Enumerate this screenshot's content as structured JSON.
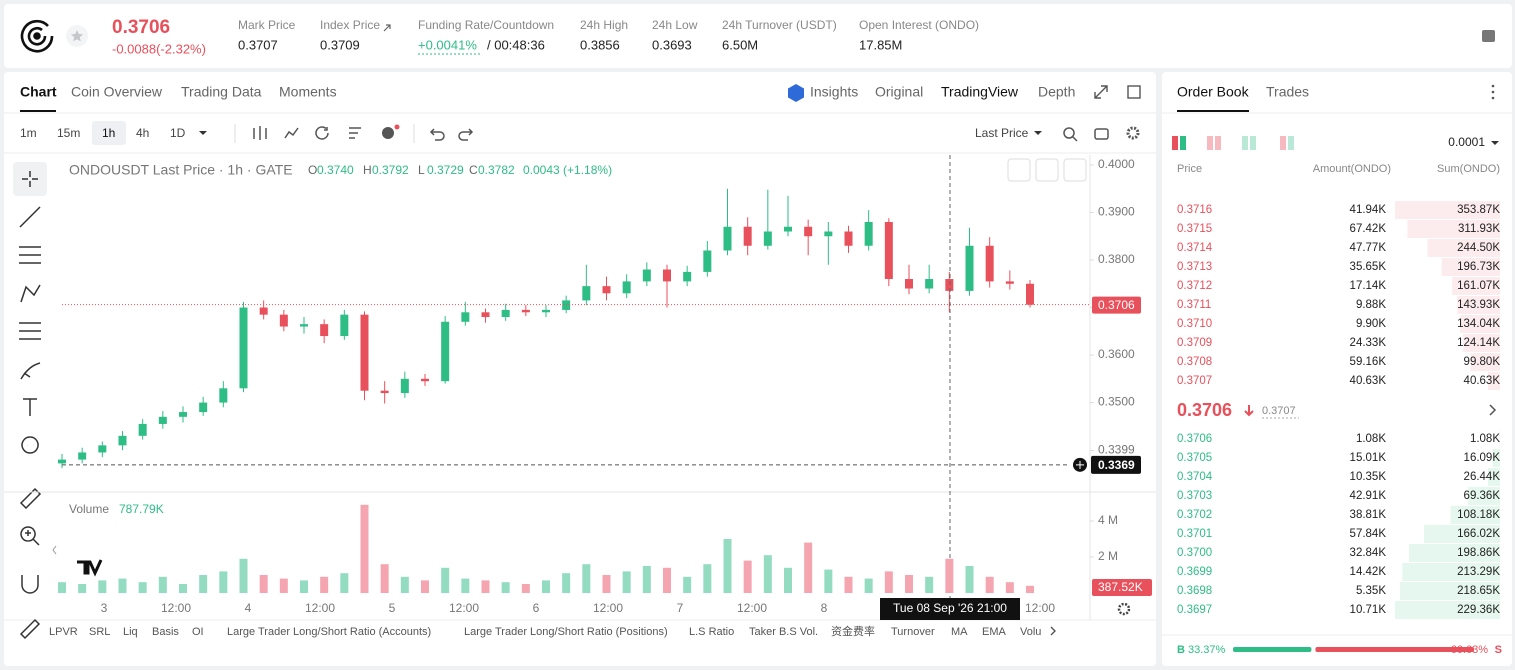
{
  "header": {
    "price": "0.3706",
    "change": "-0.0088(-2.32%)",
    "stats": [
      {
        "label": "Mark Price",
        "value": "0.3707"
      },
      {
        "label": "Index Price",
        "value": "0.3709"
      },
      {
        "label": "Funding Rate/Countdown",
        "value": "+0.0041%",
        "extra": "/ 00:48:36"
      },
      {
        "label": "24h High",
        "value": "0.3856"
      },
      {
        "label": "24h Low",
        "value": "0.3693"
      },
      {
        "label": "24h Turnover (USDT)",
        "value": "6.50M"
      },
      {
        "label": "Open Interest (ONDO)",
        "value": "17.85M"
      }
    ]
  },
  "tabs": [
    "Chart",
    "Coin Overview",
    "Trading Data",
    "Moments"
  ],
  "views": [
    "Insights",
    "Original",
    "TradingView",
    "Depth"
  ],
  "intervals": [
    "1m",
    "15m",
    "1h",
    "4h",
    "1D"
  ],
  "price_type": "Last Price",
  "chart_data": {
    "type": "candlestick",
    "title": "ONDOUSDT Last Price · 1h · GATE",
    "ohlc": [
      {
        "label": "O",
        "value": "0.3740"
      },
      {
        "label": "H",
        "value": "0.3792"
      },
      {
        "label": "L",
        "value": "0.3729"
      },
      {
        "label": "C",
        "value": "0.3782"
      }
    ],
    "change": "0.0043 (+1.18%)",
    "candles": [
      [
        0.3372,
        0.3392,
        0.3362,
        0.338
      ],
      [
        0.338,
        0.3405,
        0.3372,
        0.3395
      ],
      [
        0.3395,
        0.3418,
        0.3385,
        0.341
      ],
      [
        0.341,
        0.344,
        0.34,
        0.343
      ],
      [
        0.343,
        0.3465,
        0.3422,
        0.3455
      ],
      [
        0.3455,
        0.3482,
        0.3445,
        0.347
      ],
      [
        0.347,
        0.3492,
        0.3458,
        0.348
      ],
      [
        0.348,
        0.3512,
        0.3472,
        0.35
      ],
      [
        0.35,
        0.3545,
        0.349,
        0.353
      ],
      [
        0.353,
        0.3712,
        0.3522,
        0.37
      ],
      [
        0.37,
        0.3715,
        0.3675,
        0.3685
      ],
      [
        0.3685,
        0.3695,
        0.365,
        0.366
      ],
      [
        0.366,
        0.368,
        0.3645,
        0.3665
      ],
      [
        0.3665,
        0.3675,
        0.3625,
        0.364
      ],
      [
        0.364,
        0.3695,
        0.3632,
        0.3685
      ],
      [
        0.3685,
        0.3692,
        0.3505,
        0.3525
      ],
      [
        0.3525,
        0.3545,
        0.3498,
        0.352
      ],
      [
        0.352,
        0.3565,
        0.351,
        0.355
      ],
      [
        0.355,
        0.356,
        0.3535,
        0.3545
      ],
      [
        0.3545,
        0.3682,
        0.354,
        0.367
      ],
      [
        0.367,
        0.3712,
        0.3662,
        0.369
      ],
      [
        0.369,
        0.3698,
        0.3668,
        0.368
      ],
      [
        0.368,
        0.3708,
        0.3672,
        0.3695
      ],
      [
        0.3695,
        0.3705,
        0.3682,
        0.369
      ],
      [
        0.369,
        0.3705,
        0.368,
        0.3695
      ],
      [
        0.3695,
        0.3725,
        0.3688,
        0.3715
      ],
      [
        0.3715,
        0.379,
        0.3705,
        0.3745
      ],
      [
        0.3745,
        0.3765,
        0.3715,
        0.373
      ],
      [
        0.373,
        0.377,
        0.372,
        0.3755
      ],
      [
        0.3755,
        0.3795,
        0.3745,
        0.378
      ],
      [
        0.378,
        0.379,
        0.37,
        0.3755
      ],
      [
        0.3755,
        0.3788,
        0.3745,
        0.3775
      ],
      [
        0.3775,
        0.384,
        0.3765,
        0.382
      ],
      [
        0.382,
        0.395,
        0.381,
        0.387
      ],
      [
        0.387,
        0.389,
        0.381,
        0.383
      ],
      [
        0.383,
        0.3948,
        0.3822,
        0.386
      ],
      [
        0.386,
        0.3935,
        0.385,
        0.387
      ],
      [
        0.387,
        0.3885,
        0.381,
        0.385
      ],
      [
        0.385,
        0.388,
        0.379,
        0.386
      ],
      [
        0.386,
        0.3872,
        0.3815,
        0.383
      ],
      [
        0.383,
        0.3905,
        0.382,
        0.388
      ],
      [
        0.388,
        0.3888,
        0.3745,
        0.376
      ],
      [
        0.376,
        0.379,
        0.3728,
        0.374
      ],
      [
        0.374,
        0.379,
        0.373,
        0.376
      ],
      [
        0.376,
        0.3775,
        0.369,
        0.3735
      ],
      [
        0.3735,
        0.3868,
        0.3725,
        0.383
      ],
      [
        0.383,
        0.3848,
        0.3742,
        0.3755
      ],
      [
        0.3755,
        0.3778,
        0.3738,
        0.375
      ],
      [
        0.375,
        0.3758,
        0.37,
        0.3706
      ]
    ],
    "ylim": [
      0.3316,
      0.4021
    ],
    "yticks": [
      {
        "value": 0.4,
        "label": "0.4000"
      },
      {
        "value": 0.39,
        "label": "0.3900"
      },
      {
        "value": 0.38,
        "label": "0.3800"
      },
      {
        "value": 0.37,
        "label": "0.3700"
      },
      {
        "value": 0.36,
        "label": "0.3600"
      },
      {
        "value": 0.35,
        "label": "0.3500"
      },
      0.3399
    ],
    "last_price": 0.3706,
    "crosshair_price": 0.3369,
    "crosshair_time": "Tue 08 Sep '26  21:00",
    "xticks": [
      "3",
      "12:00",
      "4",
      "12:00",
      "5",
      "12:00",
      "6",
      "12:00",
      "7",
      "12:00",
      "8",
      "12:00"
    ],
    "volume": {
      "label": "Volume",
      "value_label": "787.79K",
      "last": "387.52K",
      "values": [
        0.6,
        0.5,
        0.7,
        0.8,
        0.6,
        0.9,
        0.5,
        1.0,
        1.2,
        1.9,
        1.0,
        0.8,
        0.7,
        0.9,
        1.1,
        4.9,
        1.6,
        0.9,
        0.7,
        1.4,
        0.8,
        0.7,
        0.6,
        0.5,
        0.7,
        1.1,
        1.6,
        1.0,
        1.2,
        1.5,
        1.4,
        0.9,
        1.6,
        3.0,
        1.8,
        2.1,
        1.4,
        2.8,
        1.3,
        0.9,
        0.8,
        1.2,
        1.0,
        0.9,
        1.9,
        1.5,
        0.9,
        0.6,
        0.4
      ],
      "ylim": [
        0,
        5.11
      ],
      "yticks": [
        {
          "value": 4,
          "label": "4 M"
        },
        {
          "value": 2,
          "label": "2 M"
        }
      ]
    }
  },
  "indicators": [
    "LPVR",
    "SRL",
    "Liq",
    "Basis",
    "OI",
    "Large Trader Long/Short Ratio (Accounts)",
    "Large Trader Long/Short Ratio (Positions)",
    "L.S Ratio",
    "Taker B.S Vol.",
    "资金费率",
    "Turnover",
    "MA",
    "EMA",
    "Volu"
  ],
  "order_book": {
    "tabs": [
      "Order Book",
      "Trades"
    ],
    "precision": "0.0001",
    "columns": [
      "Price",
      "Amount(ONDO)",
      "Sum(ONDO)"
    ],
    "asks": [
      [
        "0.3716",
        "41.94K",
        "353.87K"
      ],
      [
        "0.3715",
        "67.42K",
        "311.93K"
      ],
      [
        "0.3714",
        "47.77K",
        "244.50K"
      ],
      [
        "0.3713",
        "35.65K",
        "196.73K"
      ],
      [
        "0.3712",
        "17.14K",
        "161.07K"
      ],
      [
        "0.3711",
        "9.88K",
        "143.93K"
      ],
      [
        "0.3710",
        "9.90K",
        "134.04K"
      ],
      [
        "0.3709",
        "24.33K",
        "124.14K"
      ],
      [
        "0.3708",
        "59.16K",
        "99.80K"
      ],
      [
        "0.3707",
        "40.63K",
        "40.63K"
      ]
    ],
    "mid_price": "0.3706",
    "mark_price": "0.3707",
    "bids": [
      [
        "0.3706",
        "1.08K",
        "1.08K"
      ],
      [
        "0.3705",
        "15.01K",
        "16.09K"
      ],
      [
        "0.3704",
        "10.35K",
        "26.44K"
      ],
      [
        "0.3703",
        "42.91K",
        "69.36K"
      ],
      [
        "0.3702",
        "38.81K",
        "108.18K"
      ],
      [
        "0.3701",
        "57.84K",
        "166.02K"
      ],
      [
        "0.3700",
        "32.84K",
        "198.86K"
      ],
      [
        "0.3699",
        "14.42K",
        "213.29K"
      ],
      [
        "0.3698",
        "5.35K",
        "218.65K"
      ],
      [
        "0.3697",
        "10.71K",
        "229.36K"
      ]
    ],
    "buy_label": "B",
    "buy": "33.37%",
    "sell": "66.63%",
    "sell_label": "S"
  }
}
